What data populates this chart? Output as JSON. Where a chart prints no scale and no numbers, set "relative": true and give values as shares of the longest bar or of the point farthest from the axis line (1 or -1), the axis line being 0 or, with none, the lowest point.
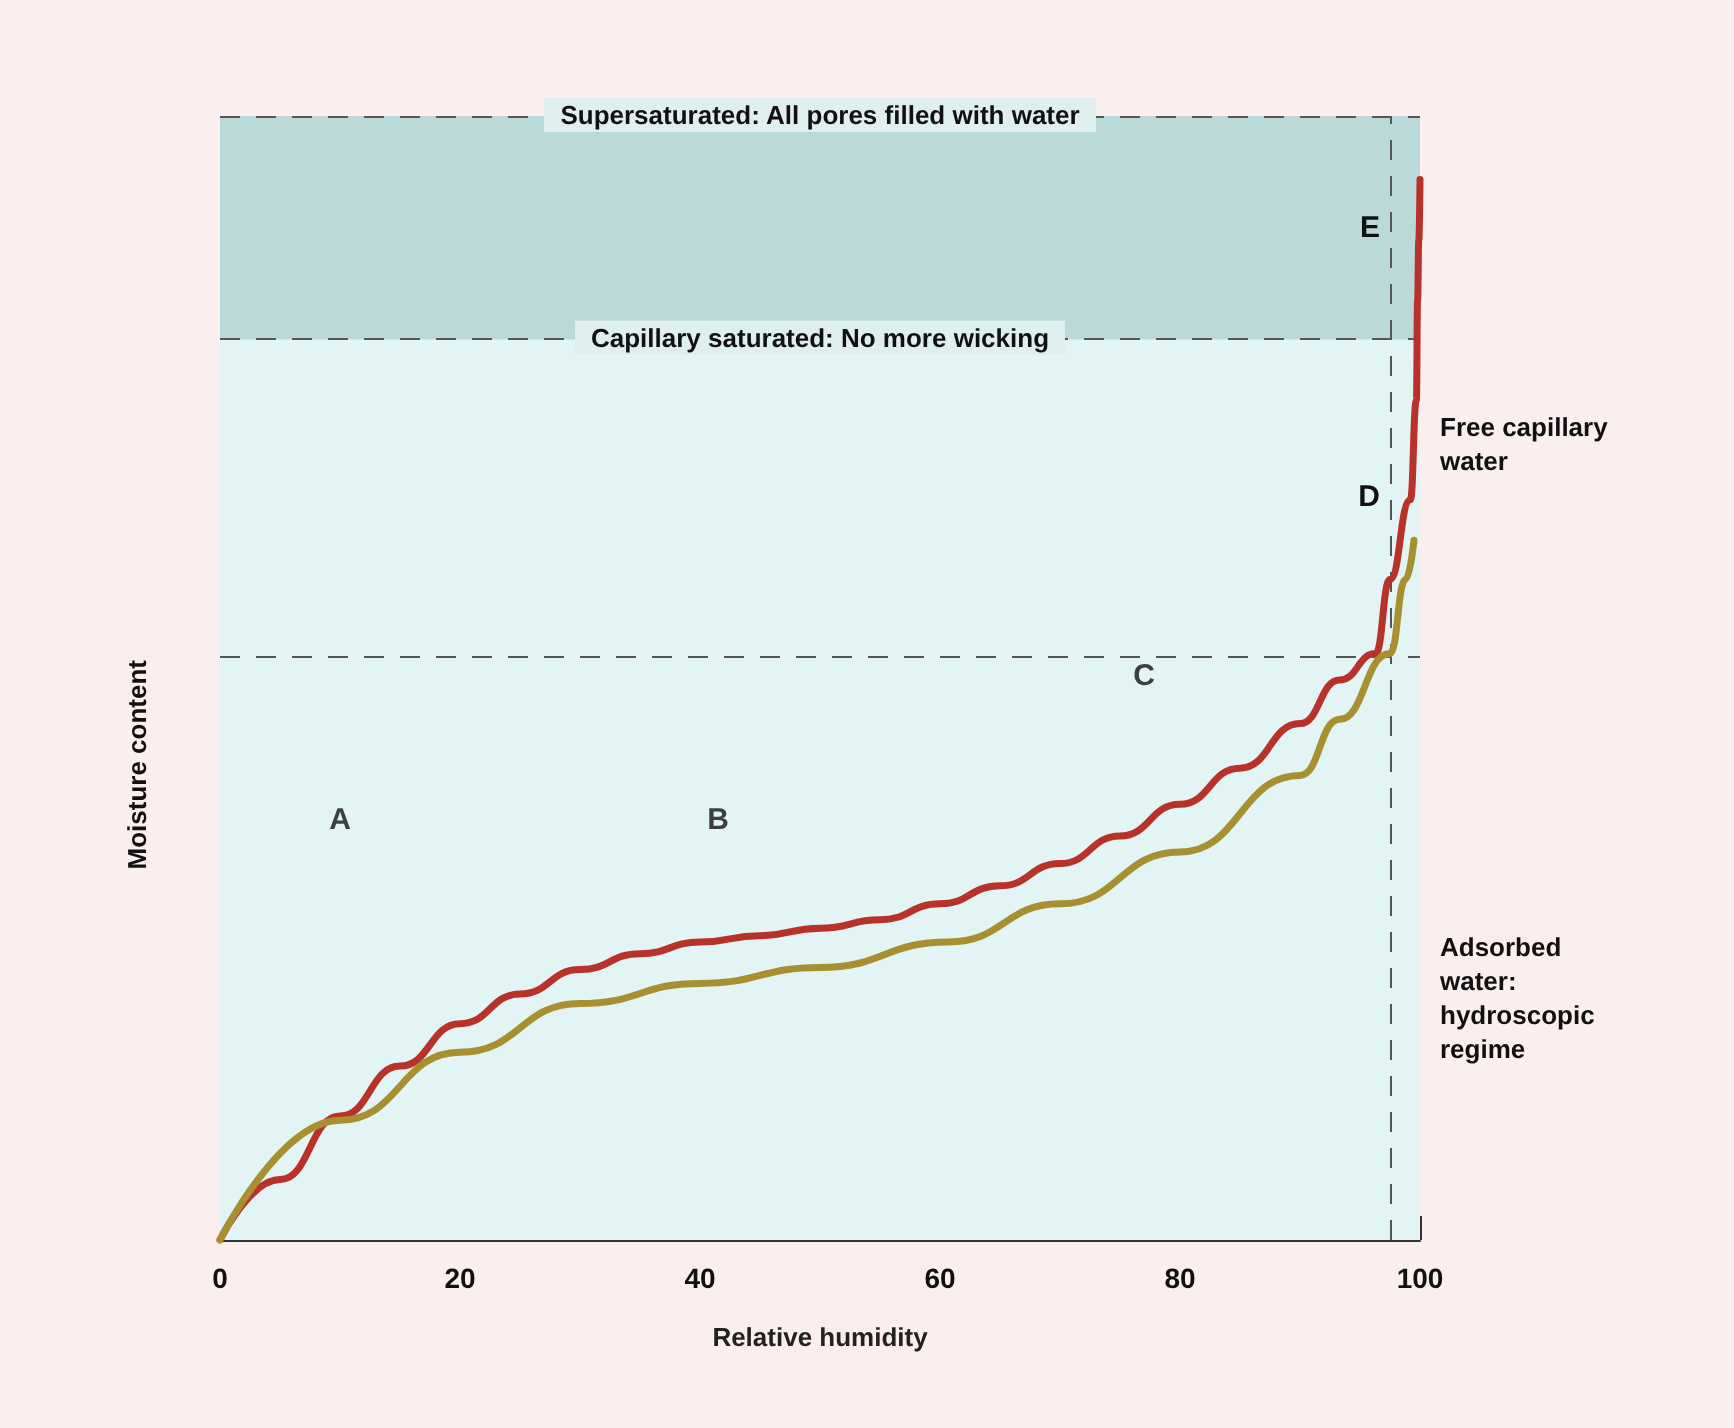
{
  "chart_data": {
    "type": "line",
    "relative": true,
    "xlabel": "Relative humidity",
    "ylabel": "Moisture content",
    "xlim": [
      0,
      100
    ],
    "xticks": [
      0,
      20,
      40,
      60,
      80,
      100
    ],
    "series": [
      {
        "color": "#b8322a",
        "x": [
          0,
          5,
          10,
          15,
          20,
          25,
          30,
          35,
          40,
          45,
          50,
          55,
          60,
          65,
          70,
          75,
          80,
          85,
          90,
          93.3,
          96.3,
          97.5,
          99.2,
          99.7,
          99.8,
          99.9,
          100
        ],
        "values": [
          0,
          0.057,
          0.117,
          0.164,
          0.204,
          0.232,
          0.255,
          0.27,
          0.281,
          0.287,
          0.294,
          0.302,
          0.317,
          0.334,
          0.355,
          0.381,
          0.411,
          0.445,
          0.487,
          0.528,
          0.553,
          0.623,
          0.698,
          0.792,
          0.887,
          0.943,
          1
        ]
      },
      {
        "color": "#a89030",
        "x": [
          0,
          10,
          20,
          30,
          40,
          50,
          60.7,
          70,
          80,
          90,
          93.3,
          97.5,
          98.8,
          99.5
        ],
        "values": [
          0,
          0.113,
          0.177,
          0.223,
          0.242,
          0.257,
          0.281,
          0.317,
          0.366,
          0.438,
          0.491,
          0.553,
          0.623,
          0.66
        ]
      }
    ],
    "bands": [
      {
        "axis": "y",
        "from": 0.849,
        "to": 1.06,
        "label": "E",
        "color": "#bcd9d9"
      },
      {
        "axis": "y",
        "from": 0.553,
        "to": 0.849,
        "label": "D",
        "color": "#e2f4f4"
      },
      {
        "axis": "y",
        "from": 0,
        "to": 0.553,
        "color": "#e2f4f4"
      }
    ],
    "ref_lines": [
      {
        "axis": "y",
        "value": 1.06,
        "label": "Supersaturated: All pores filled with water",
        "line_style": "dashed"
      },
      {
        "axis": "y",
        "value": 0.849,
        "label": "Capillary saturated: No more wicking",
        "line_style": "dashed"
      },
      {
        "axis": "y",
        "value": 0.553,
        "line_style": "dashed"
      },
      {
        "axis": "x",
        "value": 97.5,
        "line_style": "dashed"
      }
    ],
    "annotations": [
      {
        "text": "A",
        "x": 10,
        "y": 0.396
      },
      {
        "text": "B",
        "x": 41.5,
        "y": 0.396
      },
      {
        "text": "C",
        "x": 77,
        "y": 0.532
      },
      "Free capillary water",
      "Adsorbed water: hydroscopic regime"
    ]
  }
}
